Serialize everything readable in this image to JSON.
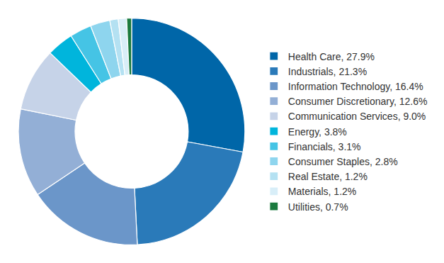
{
  "chart_data": {
    "type": "pie",
    "categories": [
      "Health Care, 27.9%",
      "Industrials, 21.3%",
      "Information Technology, 16.4%",
      "Consumer Discretionary, 12.6%",
      "Communication Services, 9.0%",
      "Energy, 3.8%",
      "Financials, 3.1%",
      "Consumer Staples, 2.8%",
      "Real Estate, 1.2%",
      "Materials, 1.2%",
      "Utilities, 0.7%"
    ],
    "values": [
      27.9,
      21.3,
      16.4,
      12.6,
      9.0,
      3.8,
      3.1,
      2.8,
      1.2,
      1.2,
      0.7
    ],
    "colors": [
      "#0066a8",
      "#2a7ab9",
      "#6b96c9",
      "#93afd6",
      "#c6d3e8",
      "#00b5dc",
      "#45c4e5",
      "#8ed5ee",
      "#b4e1f2",
      "#d8eef8",
      "#1b7a3e"
    ],
    "legend": "right"
  }
}
